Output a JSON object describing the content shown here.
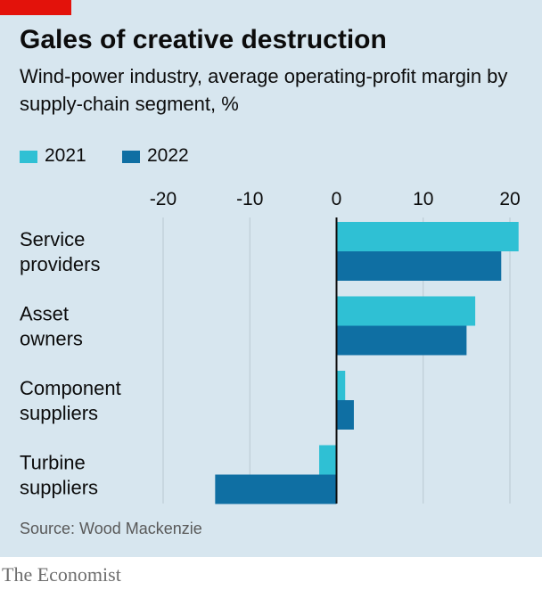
{
  "header": {
    "title": "Gales of creative destruction",
    "subtitle": "Wind-power industry, average operating-profit margin by supply-chain segment, %"
  },
  "legend": [
    {
      "label": "2021",
      "color": "#2fc0d4"
    },
    {
      "label": "2022",
      "color": "#0f6fa3"
    }
  ],
  "footer": {
    "source": "Source: Wood Mackenzie",
    "brand": "The Economist"
  },
  "colors": {
    "panel": "#d7e6ef",
    "grid": "#b9c8d1",
    "zero_line": "#0c0c0c",
    "accent": "#e3120b"
  },
  "chart_data": {
    "type": "bar",
    "orientation": "horizontal",
    "categories": [
      [
        "Service",
        "providers"
      ],
      [
        "Asset",
        "owners"
      ],
      [
        "Component",
        "suppliers"
      ],
      [
        "Turbine",
        "suppliers"
      ]
    ],
    "series": [
      {
        "name": "2021",
        "values": [
          21,
          16,
          1,
          -2
        ]
      },
      {
        "name": "2022",
        "values": [
          19,
          15,
          2,
          -14
        ]
      }
    ],
    "xlim": [
      -20,
      20
    ],
    "xticks": [
      -20,
      -10,
      0,
      10,
      20
    ],
    "grid": true,
    "legend_position": "top-left"
  }
}
